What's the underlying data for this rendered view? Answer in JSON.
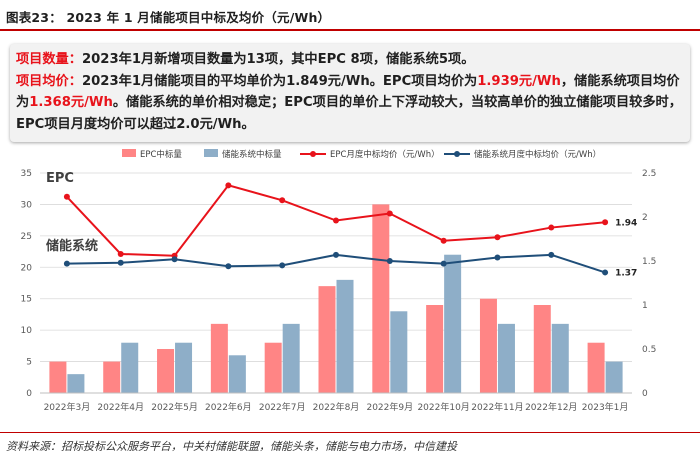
{
  "header": {
    "title": "图表23：  2023 年 1 月储能项目中标及均价（元/Wh）"
  },
  "summary": {
    "line1_label": "项目数量：",
    "line1_text": "2023年1月新增项目数量为13项，其中EPC 8项，储能系统5项。",
    "line2_label": "项目均价：",
    "line2_text_a": "2023年1月储能项目的平均单价为1.849元/Wh。EPC项目均价为",
    "line2_epc_price": "1.939元/Wh",
    "line2_text_b": "，储能系统项目均价为",
    "line2_sys_price": "1.368元/Wh",
    "line2_text_c": "。储能系统的单价相对稳定；EPC项目的单价上下浮动较大，当较高单价的独立储能项目较多时，EPC项目月度均价可以超过2.0元/Wh。"
  },
  "footer": {
    "source": "资料来源：招标投标公众服务平台，中关村储能联盟，储能头条，储能与电力市场，中信建投"
  },
  "colors": {
    "epc_bar": "#ff8585",
    "sys_bar": "#8eaec8",
    "epc_line": "#e8131b",
    "sys_line": "#1f4e79"
  },
  "chart_data": {
    "type": "bar+line",
    "categories": [
      "2022年3月",
      "2022年4月",
      "2022年5月",
      "2022年6月",
      "2022年7月",
      "2022年8月",
      "2022年9月",
      "2022年10月",
      "2022年11月",
      "2022年12月",
      "2023年1月"
    ],
    "series": [
      {
        "name": "EPC中标量",
        "type": "bar",
        "axis": "left",
        "values": [
          5,
          5,
          7,
          11,
          8,
          17,
          30,
          14,
          15,
          14,
          8
        ]
      },
      {
        "name": "储能系统中标量",
        "type": "bar",
        "axis": "left",
        "values": [
          3,
          8,
          8,
          6,
          11,
          18,
          13,
          22,
          11,
          11,
          5
        ]
      },
      {
        "name": "EPC月度中标均价（元/Wh）",
        "type": "line",
        "axis": "right",
        "values": [
          2.23,
          1.58,
          1.56,
          2.36,
          2.19,
          1.96,
          2.04,
          1.73,
          1.77,
          1.88,
          1.94
        ]
      },
      {
        "name": "储能系统月度中标均价（元/Wh）",
        "type": "line",
        "axis": "right",
        "values": [
          1.47,
          1.48,
          1.52,
          1.44,
          1.45,
          1.57,
          1.5,
          1.47,
          1.54,
          1.57,
          1.37
        ]
      }
    ],
    "y_left": {
      "range": [
        0,
        35
      ],
      "ticks": [
        "0",
        "5",
        "10",
        "15",
        "20",
        "25",
        "30",
        "35"
      ]
    },
    "y_right": {
      "range": [
        0,
        2.5
      ],
      "ticks": [
        "0",
        "0.5",
        "1",
        "1.5",
        "2",
        "2.5"
      ]
    },
    "series_labels": {
      "epc": "EPC",
      "sys": "储能系统"
    },
    "end_labels": {
      "epc": "1.94",
      "sys": "1.37"
    },
    "legend_position": "top"
  }
}
